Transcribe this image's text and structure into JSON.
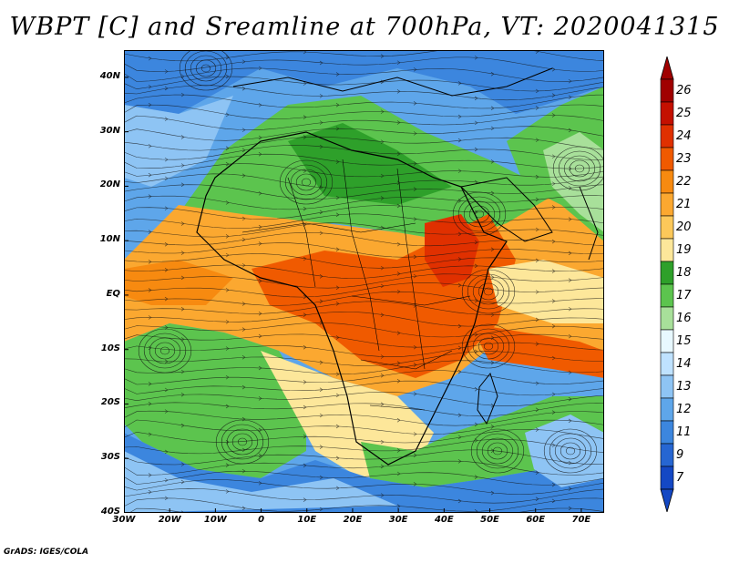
{
  "title": "WBPT [C] and Sreamline at 700hPa, VT: 2020041315",
  "credit": "GrADS: IGES/COLA",
  "map": {
    "lon_range": [
      -30,
      75
    ],
    "lat_range": [
      -40,
      45
    ],
    "lat_ticks": [
      {
        "label": "40N",
        "value": 40
      },
      {
        "label": "30N",
        "value": 30
      },
      {
        "label": "20N",
        "value": 20
      },
      {
        "label": "10N",
        "value": 10
      },
      {
        "label": "EQ",
        "value": 0
      },
      {
        "label": "10S",
        "value": -10
      },
      {
        "label": "20S",
        "value": -20
      },
      {
        "label": "30S",
        "value": -30
      },
      {
        "label": "40S",
        "value": -40
      }
    ],
    "lon_ticks": [
      {
        "label": "30W",
        "value": -30
      },
      {
        "label": "20W",
        "value": -20
      },
      {
        "label": "10W",
        "value": -10
      },
      {
        "label": "0",
        "value": 0
      },
      {
        "label": "10E",
        "value": 10
      },
      {
        "label": "20E",
        "value": 20
      },
      {
        "label": "30E",
        "value": 30
      },
      {
        "label": "40E",
        "value": 40
      },
      {
        "label": "50E",
        "value": 50
      },
      {
        "label": "60E",
        "value": 60
      },
      {
        "label": "70E",
        "value": 70
      }
    ]
  },
  "colorbar": {
    "labels": [
      "26",
      "25",
      "24",
      "23",
      "22",
      "21",
      "20",
      "19",
      "18",
      "17",
      "16",
      "15",
      "14",
      "13",
      "12",
      "11",
      "9",
      "7"
    ],
    "colors": [
      "#a00000",
      "#c41000",
      "#e03000",
      "#f05a00",
      "#f78a10",
      "#fba830",
      "#fcc85a",
      "#fde79a",
      "#2ea02a",
      "#5cc44e",
      "#a8e09a",
      "#e8f8ff",
      "#bfe2ff",
      "#8ec4f4",
      "#5ea6ea",
      "#3c86de",
      "#2666d2",
      "#1448c4"
    ]
  }
}
